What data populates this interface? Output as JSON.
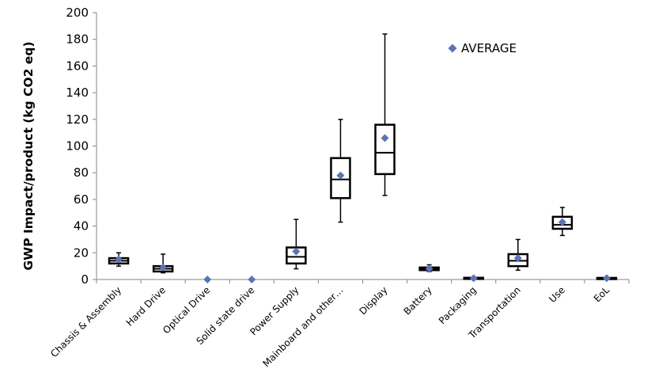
{
  "chart_data": {
    "type": "box",
    "ylabel": "GWP Impact/product (kg CO2 eq)",
    "ylim": [
      0,
      200
    ],
    "yticks": [
      0,
      20,
      40,
      60,
      80,
      100,
      120,
      140,
      160,
      180,
      200
    ],
    "grid": false,
    "legend": {
      "position": "top-right",
      "entries": [
        {
          "marker": "diamond",
          "label": "AVERAGE",
          "color": "#5B74B5"
        }
      ]
    },
    "box_color": "#000000",
    "average_color": "#5B74B5",
    "categories": [
      "Chassis & Assembly",
      "Hard Drive",
      "Optical Drive",
      "Solid state drive",
      "Power Supply",
      "Mainboard and other…",
      "Display",
      "Battery",
      "Packaging",
      "Transportation",
      "Use",
      "EoL"
    ],
    "boxes": [
      {
        "min": 10,
        "q1": 12,
        "median": 14,
        "q3": 16,
        "max": 20
      },
      {
        "min": 5,
        "q1": 6,
        "median": 8,
        "q3": 10,
        "max": 19
      },
      null,
      null,
      {
        "min": 8,
        "q1": 12,
        "median": 17,
        "q3": 24,
        "max": 45
      },
      {
        "min": 43,
        "q1": 61,
        "median": 75,
        "q3": 91,
        "max": 120
      },
      {
        "min": 63,
        "q1": 79,
        "median": 95,
        "q3": 116,
        "max": 184
      },
      {
        "min": 6,
        "q1": 7,
        "median": 8,
        "q3": 9,
        "max": 11
      },
      {
        "min": 0.5,
        "q1": 0.8,
        "median": 1,
        "q3": 1.3,
        "max": 1.6
      },
      {
        "min": 7,
        "q1": 10,
        "median": 14,
        "q3": 19,
        "max": 30
      },
      {
        "min": 33,
        "q1": 38,
        "median": 41,
        "q3": 47,
        "max": 54
      },
      {
        "min": 0.5,
        "q1": 0.8,
        "median": 1,
        "q3": 1.2,
        "max": 1.5
      }
    ],
    "averages": [
      15,
      9,
      0,
      0,
      21,
      78,
      106,
      8,
      1,
      16,
      43,
      1
    ]
  }
}
